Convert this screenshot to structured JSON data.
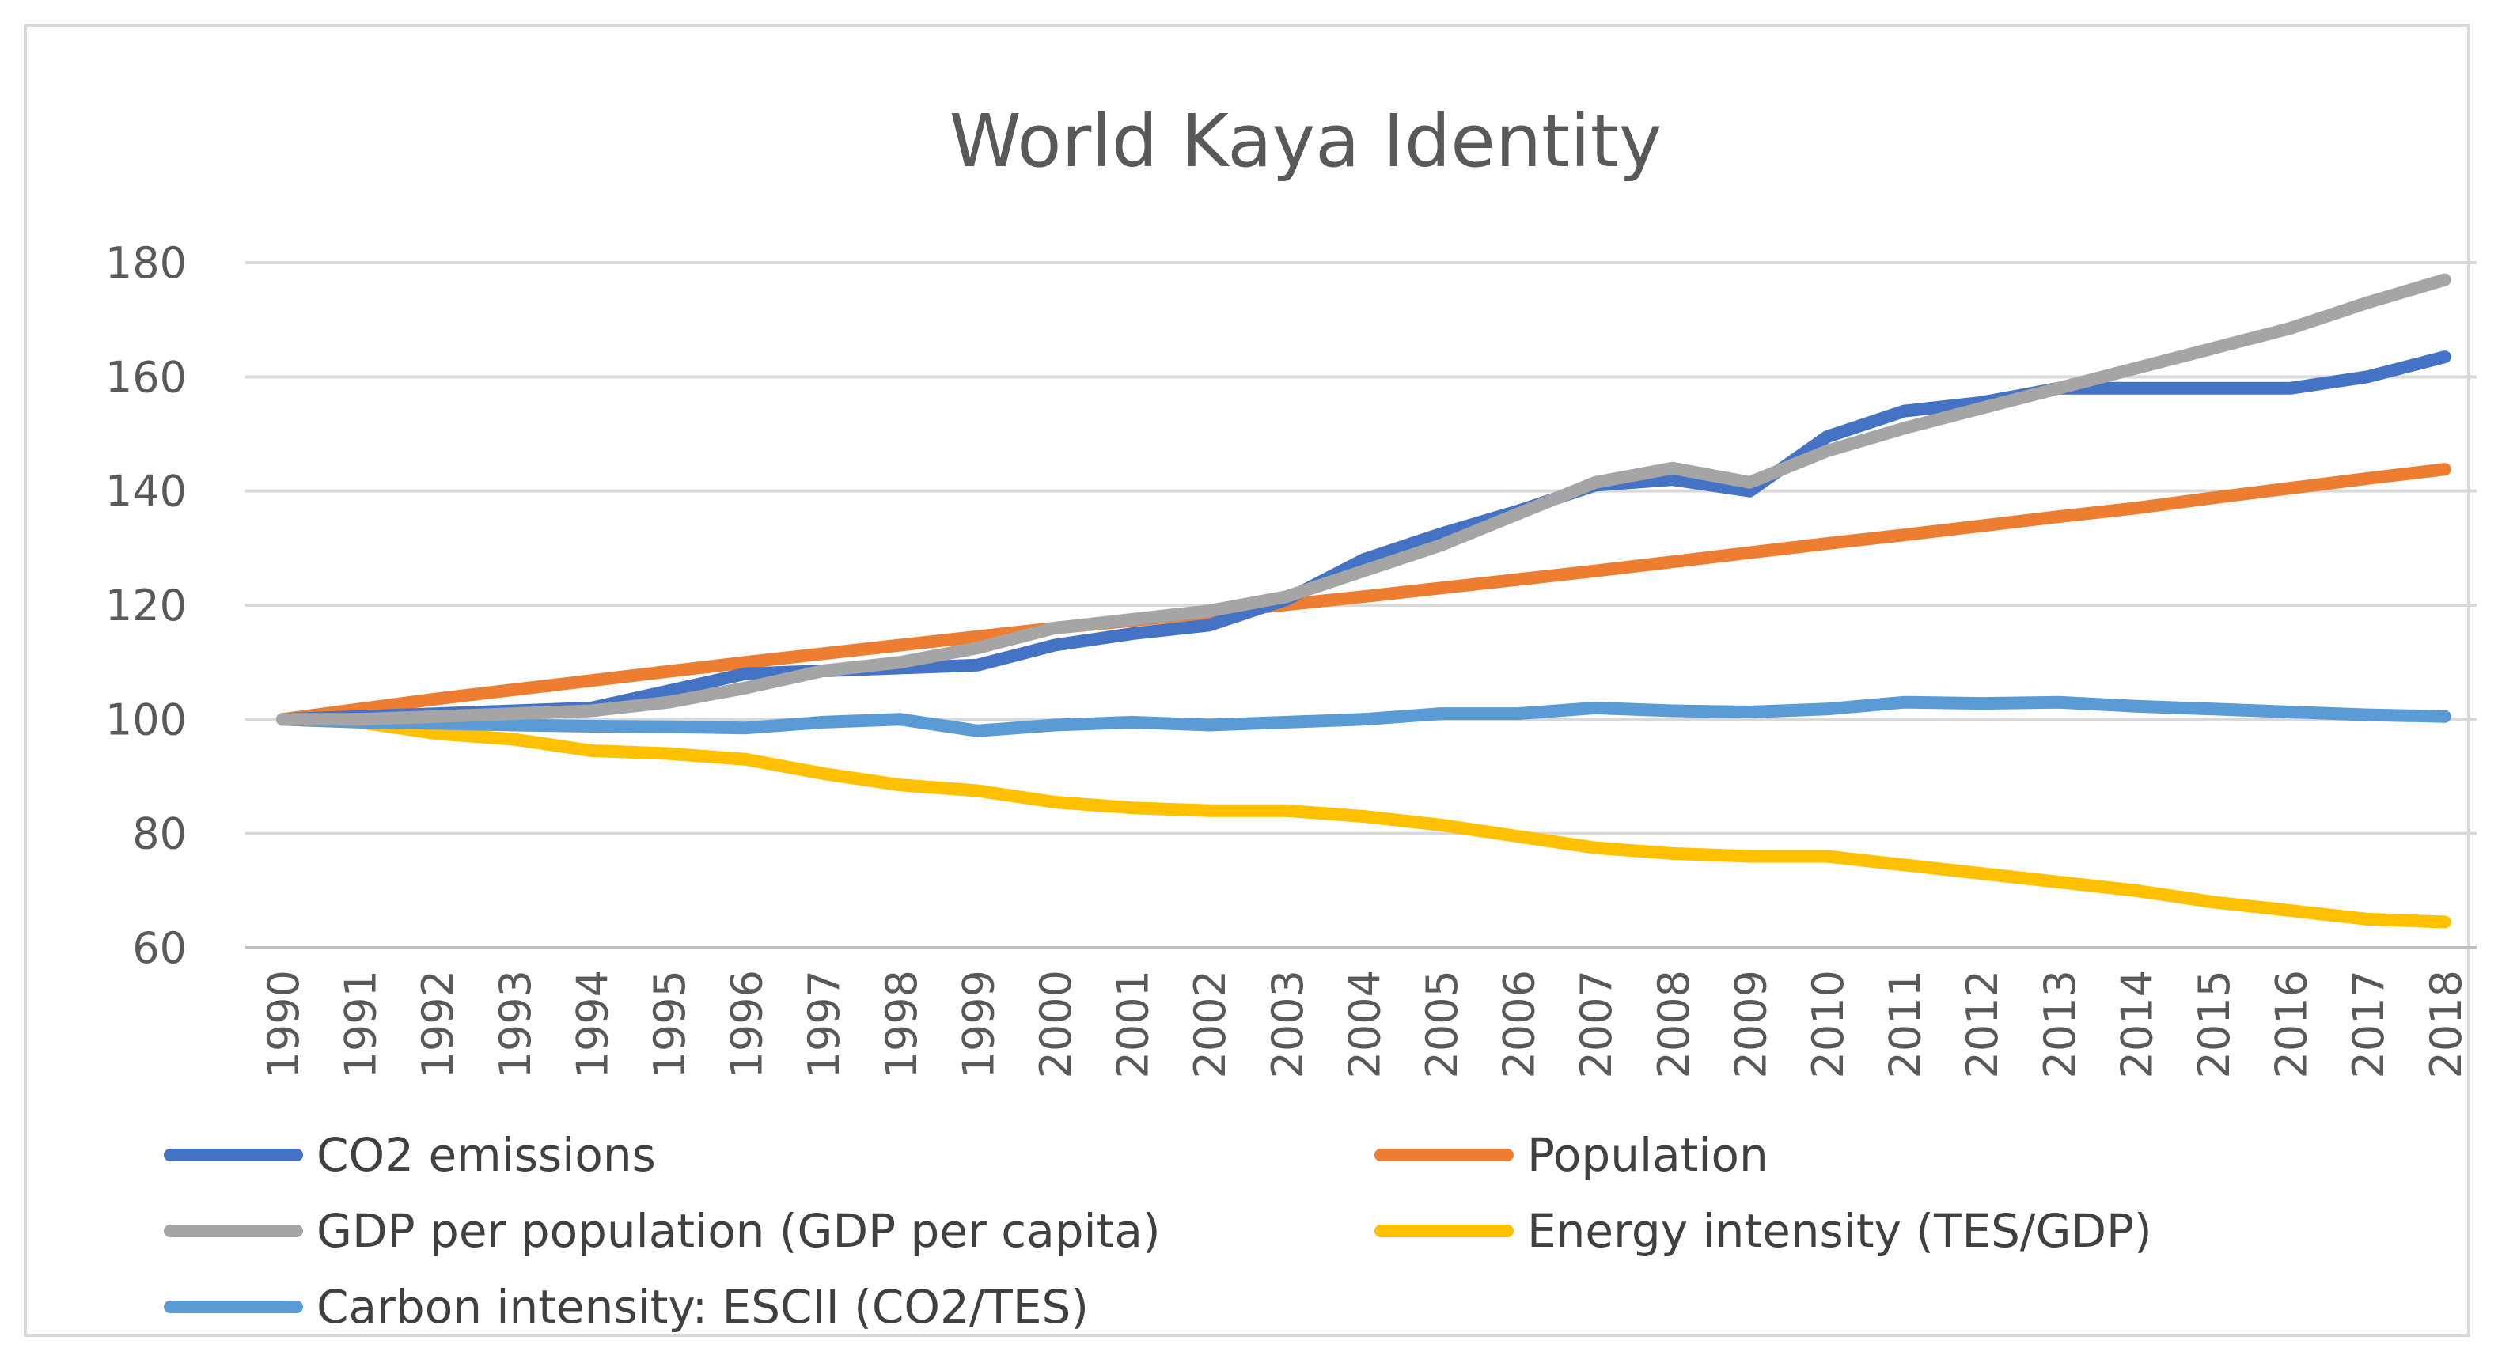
{
  "chart_data": {
    "type": "line",
    "title": "World Kaya Identity",
    "xlabel": "",
    "ylabel": "",
    "ylim": [
      60,
      180
    ],
    "yticks": [
      60,
      80,
      100,
      120,
      140,
      160,
      180
    ],
    "grid": true,
    "legend_position": "bottom",
    "x": [
      "1990",
      "1991",
      "1992",
      "1993",
      "1994",
      "1995",
      "1996",
      "1997",
      "1998",
      "1999",
      "2000",
      "2001",
      "2002",
      "2003",
      "2004",
      "2005",
      "2006",
      "2007",
      "2008",
      "2009",
      "2010",
      "2011",
      "2012",
      "2013",
      "2014",
      "2015",
      "2016",
      "2017",
      "2018"
    ],
    "series": [
      {
        "name": "CO2 emissions",
        "color": "#4472c4",
        "values": [
          100,
          100.5,
          101,
          101.5,
          102,
          105,
          108,
          108.5,
          109,
          109.5,
          113,
          115,
          116.5,
          121,
          128,
          132.5,
          136.5,
          141,
          142,
          140,
          149.5,
          154,
          155.5,
          158,
          158,
          158,
          158,
          160,
          163.5
        ]
      },
      {
        "name": "Population",
        "color": "#ed7d31",
        "values": [
          100,
          101.8,
          103.6,
          105.2,
          106.8,
          108.4,
          110,
          111.5,
          113,
          114.5,
          116,
          117.3,
          118.7,
          120.1,
          121.5,
          123,
          124.5,
          126,
          127.6,
          129.2,
          130.8,
          132.3,
          133.9,
          135.5,
          137,
          138.8,
          140.5,
          142.2,
          143.8
        ]
      },
      {
        "name": "GDP per population (GDP per capita)",
        "color": "#a5a5a5",
        "values": [
          100,
          100,
          100.5,
          101,
          101.5,
          103,
          105.5,
          108.5,
          110,
          112.5,
          116,
          117.5,
          119,
          121.5,
          126,
          130.5,
          136,
          141.5,
          144,
          141.5,
          147,
          151,
          154.5,
          158,
          161.5,
          165,
          168.5,
          173,
          177
        ]
      },
      {
        "name": "Energy intensity (TES/GDP)",
        "color": "#ffc000",
        "values": [
          100,
          99.5,
          97.5,
          96.5,
          94.5,
          94,
          93,
          90.5,
          88.5,
          87.5,
          85.5,
          84.5,
          84,
          84,
          83,
          81.5,
          79.5,
          77.5,
          76.5,
          76,
          76,
          74.5,
          73,
          71.5,
          70,
          68,
          66.5,
          65,
          64.5
        ]
      },
      {
        "name": "Carbon intensity: ESCII (CO2/TES)",
        "color": "#5b9bd5",
        "values": [
          100,
          99.5,
          99.3,
          99,
          98.8,
          98.7,
          98.5,
          99.5,
          100,
          98,
          99,
          99.5,
          99,
          99.5,
          100,
          101,
          101,
          102,
          101.5,
          101.3,
          101.8,
          103,
          102.8,
          103,
          102.3,
          101.8,
          101.3,
          100.8,
          100.5
        ]
      }
    ]
  }
}
